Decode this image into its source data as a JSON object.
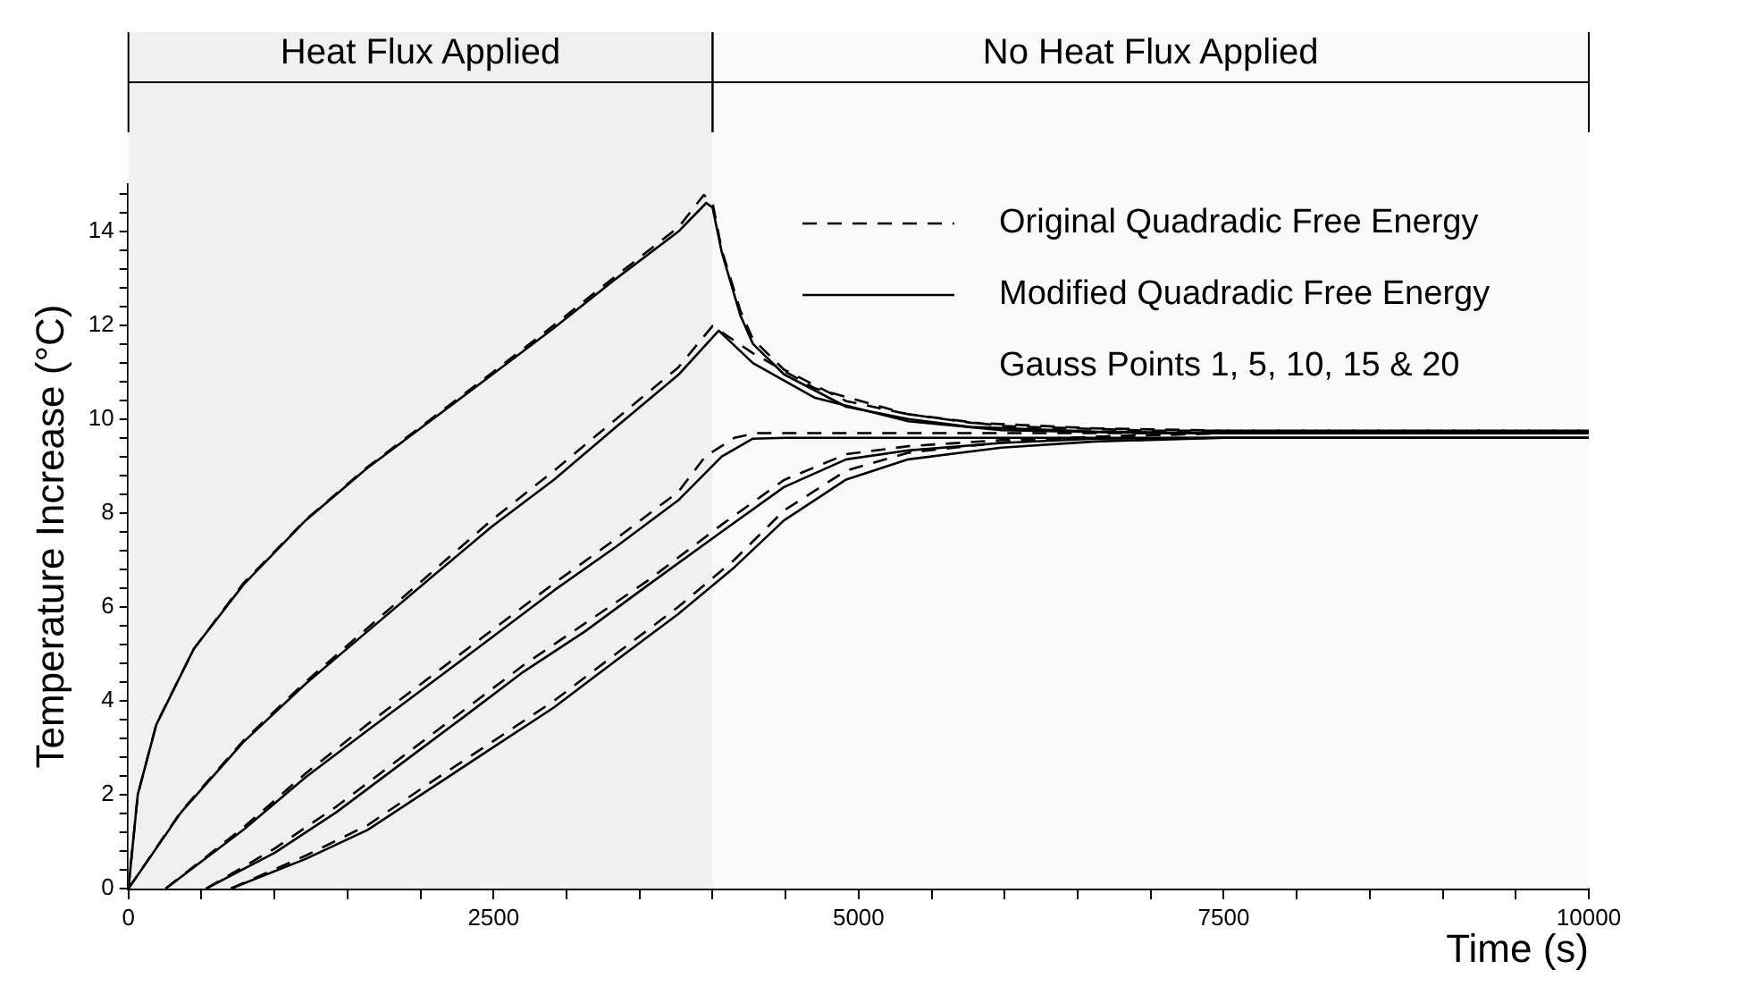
{
  "chart_data": {
    "type": "line",
    "xlabel": "Time (s)",
    "ylabel": "Temperature Increase (°C)",
    "xlim": [
      0,
      10000
    ],
    "ylim": [
      0,
      15
    ],
    "xticks": [
      0,
      {
        "value": 500,
        "label": null
      },
      {
        "value": 1000,
        "label": null
      },
      {
        "value": 1500,
        "label": null
      },
      {
        "value": 2000,
        "label": null
      },
      2500,
      {
        "value": 3000,
        "label": null
      },
      {
        "value": 3500,
        "label": null
      },
      {
        "value": 4000,
        "label": null
      },
      {
        "value": 4500,
        "label": null
      },
      5000,
      {
        "value": 5500,
        "label": null
      },
      {
        "value": 6000,
        "label": null
      },
      {
        "value": 6500,
        "label": null
      },
      {
        "value": 7000,
        "label": null
      },
      7500,
      {
        "value": 8000,
        "label": null
      },
      {
        "value": 8500,
        "label": null
      },
      {
        "value": 9000,
        "label": null
      },
      {
        "value": 9500,
        "label": null
      },
      10000
    ],
    "yticks": [
      0,
      {
        "value": 0.4,
        "label": null
      },
      {
        "value": 0.8,
        "label": null
      },
      {
        "value": 1.2,
        "label": null
      },
      {
        "value": 1.6,
        "label": null
      },
      2,
      {
        "value": 2.4,
        "label": null
      },
      {
        "value": 2.8,
        "label": null
      },
      {
        "value": 3.2,
        "label": null
      },
      {
        "value": 3.6,
        "label": null
      },
      4,
      {
        "value": 4.4,
        "label": null
      },
      {
        "value": 4.8,
        "label": null
      },
      {
        "value": 5.2,
        "label": null
      },
      {
        "value": 5.6,
        "label": null
      },
      6,
      {
        "value": 6.4,
        "label": null
      },
      {
        "value": 6.8,
        "label": null
      },
      {
        "value": 7.2,
        "label": null
      },
      {
        "value": 7.6,
        "label": null
      },
      8,
      {
        "value": 8.4,
        "label": null
      },
      {
        "value": 8.8,
        "label": null
      },
      {
        "value": 9.2,
        "label": null
      },
      {
        "value": 9.6,
        "label": null
      },
      10,
      {
        "value": 10.4,
        "label": null
      },
      {
        "value": 10.8,
        "label": null
      },
      {
        "value": 11.2,
        "label": null
      },
      {
        "value": 11.6,
        "label": null
      },
      12,
      {
        "value": 12.4,
        "label": null
      },
      {
        "value": 12.8,
        "label": null
      },
      {
        "value": 13.2,
        "label": null
      },
      {
        "value": 13.6,
        "label": null
      },
      14,
      {
        "value": 14.4,
        "label": null
      },
      {
        "value": 14.8,
        "label": null
      }
    ],
    "grid": false,
    "legend": "top right",
    "marker": "none",
    "annotations": [
      "Gauss Points 1, 5, 10, 15 & 20"
    ],
    "bands": [
      {
        "axis": "x",
        "from": 0,
        "to": 4000,
        "label": "Heat Flux Applied",
        "color": "#f0f0f0"
      },
      {
        "axis": "x",
        "from": 4000,
        "to": 10000,
        "label": "No Heat Flux Applied",
        "color": "#f9f9f9"
      }
    ],
    "series": [
      {
        "name": "Original Quadradic Free Energy",
        "color": "#000000",
        "line_style": "dashed",
        "x": [
          0,
          64,
          191,
          447,
          787,
          1213,
          1638,
          2064,
          2489,
          2915,
          3340,
          3766,
          3940,
          4000,
          4063,
          4191,
          4276,
          4489,
          4915,
          5340,
          5766,
          6617,
          7500,
          10000
        ],
        "values": [
          0,
          2.0,
          3.5,
          5.1,
          6.5,
          7.85,
          8.98,
          9.98,
          10.98,
          12.0,
          13.05,
          14.08,
          14.77,
          14.6,
          13.6,
          12.3,
          11.7,
          11.05,
          10.38,
          10.1,
          9.92,
          9.8,
          9.75,
          9.75
        ]
      },
      {
        "name": "Modified Quadradic Free Energy",
        "color": "#000000",
        "line_style": "solid",
        "x": [
          0,
          64,
          191,
          447,
          787,
          1213,
          1638,
          2064,
          2489,
          2915,
          3340,
          3766,
          3957,
          4000,
          4063,
          4191,
          4276,
          4489,
          4915,
          5340,
          5766,
          6617,
          7500,
          10000
        ],
        "values": [
          0,
          2.0,
          3.49,
          5.1,
          6.47,
          7.84,
          8.96,
          9.95,
          10.94,
          11.94,
          12.99,
          13.99,
          14.6,
          14.5,
          13.55,
          12.2,
          11.6,
          10.95,
          10.26,
          10.0,
          9.83,
          9.73,
          9.7,
          9.7
        ]
      },
      {
        "color": "#000000",
        "line_style": "dashed",
        "x": [
          0,
          362,
          787,
          1213,
          1638,
          2064,
          2489,
          2915,
          3340,
          3766,
          4000,
          4276,
          4702,
          5340,
          5978,
          7000,
          10000
        ],
        "values": [
          0,
          1.65,
          3.15,
          4.4,
          5.55,
          6.7,
          7.85,
          8.9,
          10.0,
          11.1,
          11.98,
          11.4,
          10.65,
          10.1,
          9.85,
          9.75,
          9.75
        ]
      },
      {
        "color": "#000000",
        "line_style": "solid",
        "x": [
          0,
          362,
          787,
          1213,
          1638,
          2064,
          2489,
          2915,
          3340,
          3766,
          4042,
          4276,
          4702,
          5340,
          5978,
          7000,
          10000
        ],
        "values": [
          0,
          1.63,
          3.12,
          4.36,
          5.48,
          6.6,
          7.71,
          8.71,
          9.83,
          10.94,
          11.88,
          11.19,
          10.45,
          9.95,
          9.76,
          9.7,
          9.7
        ]
      },
      {
        "color": "#000000",
        "line_style": "dashed",
        "x": [
          255,
          787,
          1213,
          1638,
          2064,
          2489,
          2915,
          3340,
          3766,
          3950,
          4150,
          4300,
          10000
        ],
        "values": [
          0,
          1.3,
          2.45,
          3.5,
          4.5,
          5.5,
          6.5,
          7.45,
          8.45,
          9.2,
          9.6,
          9.7,
          9.7
        ]
      },
      {
        "color": "#000000",
        "line_style": "solid",
        "x": [
          255,
          787,
          1213,
          1638,
          2064,
          2489,
          2915,
          3340,
          3766,
          4063,
          4276,
          4500,
          10000
        ],
        "values": [
          0,
          1.25,
          2.37,
          3.37,
          4.36,
          5.35,
          6.35,
          7.28,
          8.27,
          9.2,
          9.58,
          9.6,
          9.6
        ]
      },
      {
        "color": "#000000",
        "line_style": "dashed",
        "x": [
          532,
          1000,
          1426,
          1851,
          2277,
          2702,
          3128,
          3553,
          4063,
          4489,
          4915,
          5340,
          5978,
          6617,
          7500,
          10000
        ],
        "values": [
          0,
          0.85,
          1.75,
          2.75,
          3.75,
          4.75,
          5.65,
          6.55,
          7.75,
          8.7,
          9.25,
          9.42,
          9.55,
          9.62,
          9.7,
          9.7
        ]
      },
      {
        "color": "#000000",
        "line_style": "solid",
        "x": [
          532,
          1000,
          1426,
          1851,
          2277,
          2702,
          3128,
          3553,
          4063,
          4489,
          4915,
          5340,
          5978,
          6617,
          7500,
          10000
        ],
        "values": [
          0,
          0.76,
          1.63,
          2.62,
          3.61,
          4.61,
          5.48,
          6.45,
          7.6,
          8.55,
          9.14,
          9.33,
          9.49,
          9.58,
          9.6,
          9.6
        ]
      },
      {
        "color": "#000000",
        "line_style": "dashed",
        "x": [
          702,
          1213,
          1638,
          2064,
          2489,
          2915,
          3340,
          3766,
          4149,
          4489,
          4915,
          5340,
          5978,
          6617,
          7500,
          10000
        ],
        "values": [
          0,
          0.7,
          1.35,
          2.25,
          3.12,
          4.0,
          5.0,
          6.0,
          7.0,
          8.05,
          8.9,
          9.28,
          9.5,
          9.62,
          9.7,
          9.7
        ]
      },
      {
        "color": "#000000",
        "line_style": "solid",
        "x": [
          702,
          1213,
          1638,
          2064,
          2489,
          2915,
          3340,
          3766,
          4149,
          4489,
          4915,
          5340,
          5978,
          6617,
          7500,
          10000
        ],
        "values": [
          0,
          0.63,
          1.25,
          2.12,
          2.99,
          3.86,
          4.86,
          5.85,
          6.84,
          7.84,
          8.71,
          9.14,
          9.39,
          9.52,
          9.6,
          9.6
        ]
      }
    ]
  }
}
